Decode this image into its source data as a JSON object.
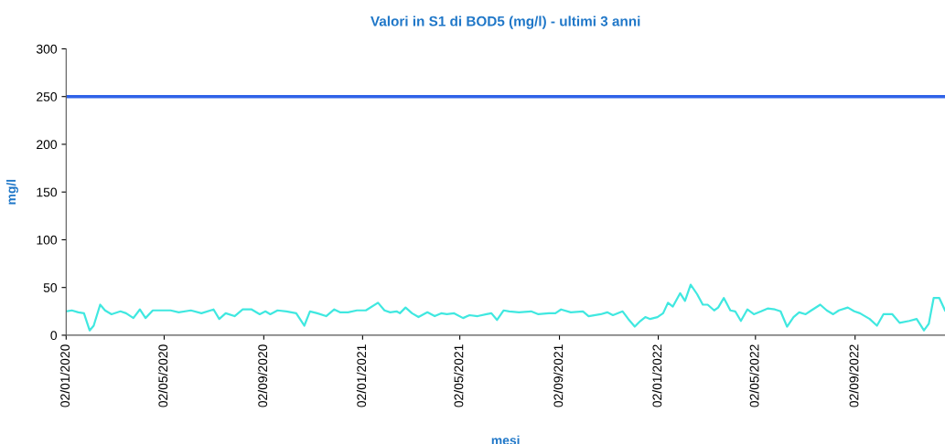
{
  "chart_data": {
    "type": "line",
    "title": "Valori in S1 di BOD5 (mg/l) - ultimi 3 anni",
    "xlabel": "mesi",
    "ylabel": "mg/l",
    "x": [
      "2020-01-02",
      "2020-01-09",
      "2020-01-17",
      "2020-01-24",
      "2020-01-31",
      "2020-02-05",
      "2020-02-13",
      "2020-02-19",
      "2020-02-27",
      "2020-03-09",
      "2020-03-16",
      "2020-03-25",
      "2020-04-02",
      "2020-04-09",
      "2020-04-18",
      "2020-04-27",
      "2020-05-10",
      "2020-05-20",
      "2020-06-04",
      "2020-06-17",
      "2020-07-02",
      "2020-07-09",
      "2020-07-17",
      "2020-07-28",
      "2020-08-07",
      "2020-08-18",
      "2020-08-28",
      "2020-09-04",
      "2020-09-10",
      "2020-09-19",
      "2020-09-30",
      "2020-10-12",
      "2020-10-22",
      "2020-10-29",
      "2020-11-07",
      "2020-11-18",
      "2020-11-28",
      "2020-12-05",
      "2020-12-15",
      "2020-12-26",
      "2021-01-06",
      "2021-01-21",
      "2021-01-29",
      "2021-02-05",
      "2021-02-13",
      "2021-02-17",
      "2021-02-24",
      "2021-03-04",
      "2021-03-12",
      "2021-03-23",
      "2021-04-01",
      "2021-04-09",
      "2021-04-16",
      "2021-04-25",
      "2021-05-06",
      "2021-05-14",
      "2021-05-24",
      "2021-06-04",
      "2021-06-10",
      "2021-06-17",
      "2021-06-25",
      "2021-07-02",
      "2021-07-14",
      "2021-07-29",
      "2021-08-07",
      "2021-08-20",
      "2021-08-28",
      "2021-09-04",
      "2021-09-16",
      "2021-10-01",
      "2021-10-08",
      "2021-10-23",
      "2021-10-31",
      "2021-11-07",
      "2021-11-19",
      "2021-11-26",
      "2021-12-04",
      "2021-12-11",
      "2021-12-17",
      "2021-12-23",
      "2022-01-01",
      "2022-01-08",
      "2022-01-14",
      "2022-01-20",
      "2022-01-29",
      "2022-02-04",
      "2022-02-11",
      "2022-02-19",
      "2022-02-26",
      "2022-03-04",
      "2022-03-12",
      "2022-03-17",
      "2022-03-24",
      "2022-04-01",
      "2022-04-07",
      "2022-04-14",
      "2022-04-22",
      "2022-04-30",
      "2022-05-09",
      "2022-05-17",
      "2022-05-26",
      "2022-06-02",
      "2022-06-10",
      "2022-06-18",
      "2022-06-25",
      "2022-07-03",
      "2022-07-10",
      "2022-07-21",
      "2022-07-29",
      "2022-08-06",
      "2022-08-13",
      "2022-08-24",
      "2022-09-01",
      "2022-09-08",
      "2022-09-20",
      "2022-09-29",
      "2022-10-07",
      "2022-10-18",
      "2022-10-27",
      "2022-11-08",
      "2022-11-17",
      "2022-11-26",
      "2022-12-02",
      "2022-12-08",
      "2022-12-15",
      "2022-12-22"
    ],
    "series": [
      {
        "color": "#40e8e0",
        "values": [
          25,
          26,
          24,
          23,
          5,
          10,
          32,
          26,
          22,
          25,
          23,
          18,
          27,
          18,
          26,
          26,
          26,
          24,
          26,
          23,
          27,
          17,
          23,
          20,
          27,
          27,
          22,
          25,
          22,
          26,
          25,
          23,
          10,
          25,
          23,
          20,
          27,
          24,
          24,
          26,
          26,
          34,
          26,
          24,
          25,
          23,
          29,
          23,
          19,
          24,
          20,
          23,
          22,
          23,
          18,
          21,
          20,
          22,
          23,
          16,
          26,
          25,
          24,
          25,
          22,
          23,
          23,
          27,
          24,
          25,
          20,
          22,
          24,
          21,
          25,
          17,
          9,
          15,
          19,
          17,
          19,
          23,
          34,
          30,
          44,
          36,
          53,
          43,
          32,
          32,
          26,
          29,
          39,
          26,
          25,
          15,
          27,
          22,
          25,
          28,
          27,
          25,
          9,
          19,
          24,
          22,
          26,
          32,
          26,
          22,
          26,
          29,
          25,
          23,
          17,
          10,
          22,
          22,
          13,
          15,
          17,
          5,
          12,
          39,
          39,
          26
        ]
      }
    ],
    "xlim": [
      "2020-01-02",
      "2022-12-22"
    ],
    "xticks": [
      {
        "value": "2020-01-02",
        "label": "02/01/2020"
      },
      {
        "value": "2020-05-02",
        "label": "02/05/2020"
      },
      {
        "value": "2020-09-02",
        "label": "02/09/2020"
      },
      {
        "value": "2021-01-02",
        "label": "02/01/2021"
      },
      {
        "value": "2021-05-02",
        "label": "02/05/2021"
      },
      {
        "value": "2021-09-02",
        "label": "02/09/2021"
      },
      {
        "value": "2022-01-02",
        "label": "02/01/2022"
      },
      {
        "value": "2022-05-02",
        "label": "02/05/2022"
      },
      {
        "value": "2022-09-02",
        "label": "02/09/2022"
      }
    ],
    "ylim": [
      0,
      300
    ],
    "yticks": [
      0,
      50,
      100,
      150,
      200,
      250,
      300
    ],
    "ref_lines": [
      {
        "axis": "y",
        "value": 250,
        "color": "#2f62e8"
      }
    ],
    "grid": false,
    "marker": "none",
    "line_style": "solid"
  }
}
